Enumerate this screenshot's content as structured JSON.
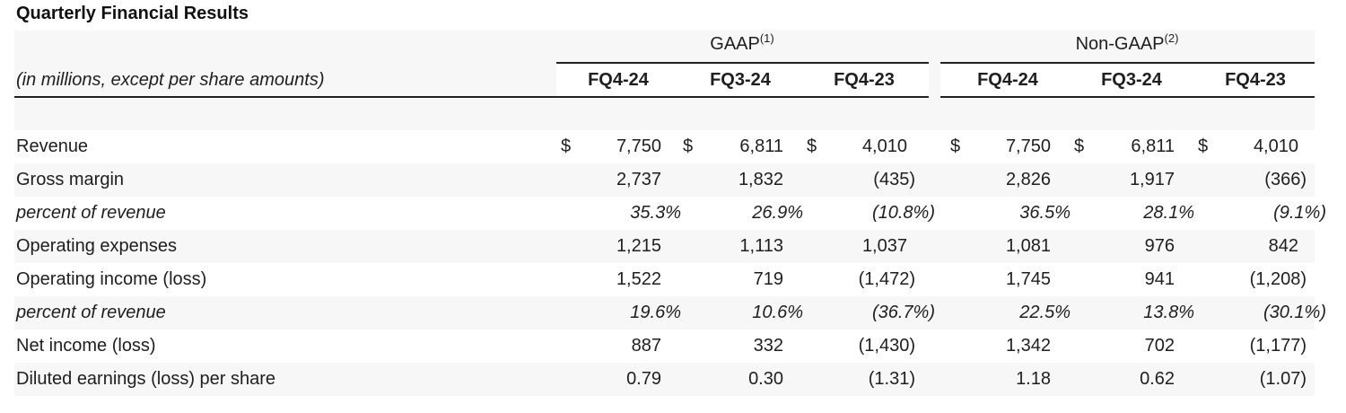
{
  "title": "Quarterly Financial Results",
  "unit_note": "(in millions, except per share amounts)",
  "groups": [
    {
      "label": "GAAP",
      "footnote": "(1)"
    },
    {
      "label": "Non-GAAP",
      "footnote": "(2)"
    }
  ],
  "columns": [
    "FQ4-24",
    "FQ3-24",
    "FQ4-23",
    "FQ4-24",
    "FQ3-24",
    "FQ4-23"
  ],
  "currency_symbol": "$",
  "rows": [
    {
      "label": "Revenue",
      "italic": false,
      "currency": true,
      "values": [
        "7,750",
        "6,811",
        "4,010",
        "7,750",
        "6,811",
        "4,010"
      ]
    },
    {
      "label": "Gross margin",
      "italic": false,
      "currency": false,
      "values": [
        "2,737",
        "1,832",
        "(435)",
        "2,826",
        "1,917",
        "(366)"
      ]
    },
    {
      "label": "percent of revenue",
      "italic": true,
      "currency": false,
      "values": [
        "35.3%",
        "26.9%",
        "(10.8%)",
        "36.5%",
        "28.1%",
        "(9.1%)"
      ]
    },
    {
      "label": "Operating expenses",
      "italic": false,
      "currency": false,
      "values": [
        "1,215",
        "1,113",
        "1,037",
        "1,081",
        "976",
        "842"
      ]
    },
    {
      "label": "Operating income (loss)",
      "italic": false,
      "currency": false,
      "values": [
        "1,522",
        "719",
        "(1,472)",
        "1,745",
        "941",
        "(1,208)"
      ]
    },
    {
      "label": "percent of revenue",
      "italic": true,
      "currency": false,
      "values": [
        "19.6%",
        "10.6%",
        "(36.7%)",
        "22.5%",
        "13.8%",
        "(30.1%)"
      ]
    },
    {
      "label": "Net income (loss)",
      "italic": false,
      "currency": false,
      "values": [
        "887",
        "332",
        "(1,430)",
        "1,342",
        "702",
        "(1,177)"
      ]
    },
    {
      "label": "Diluted earnings (loss) per share",
      "italic": false,
      "currency": false,
      "values": [
        "0.79",
        "0.30",
        "(1.31)",
        "1.18",
        "0.62",
        "(1.07)"
      ]
    }
  ]
}
